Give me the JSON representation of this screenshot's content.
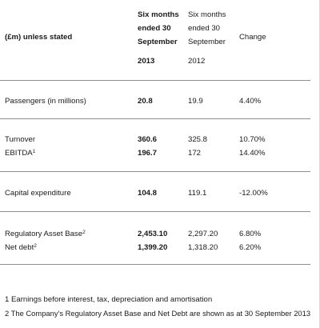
{
  "table": {
    "headers": {
      "label": "(£m) unless stated",
      "col2013": [
        "Six months",
        "ended 30",
        "September",
        "2013"
      ],
      "col2012": [
        "Six months",
        "ended 30",
        "September",
        "2012"
      ],
      "change": "Change"
    },
    "rows": [
      {
        "label": "Passengers (in millions)",
        "sup": "",
        "v2013": "20.8",
        "v2012": "19.9",
        "change": "4.40%"
      },
      {
        "label": "Turnover",
        "sup": "",
        "v2013": "360.6",
        "v2012": "325.8",
        "change": "10.70%"
      },
      {
        "label": "EBITDA",
        "sup": "1",
        "v2013": "196.7",
        "v2012": "172",
        "change": "14.40%"
      },
      {
        "label": "Capital expenditure",
        "sup": "",
        "v2013": "104.8",
        "v2012": "119.1",
        "change": "-12.00%"
      },
      {
        "label": "Regulatory Asset Base",
        "sup": "2",
        "v2013": "2,453.10",
        "v2012": "2,297.20",
        "change": "6.80%"
      },
      {
        "label": "Net debt",
        "sup": "2",
        "v2013": "1,399.20",
        "v2012": "1,318.20",
        "change": "6.20%"
      }
    ]
  },
  "footnotes": [
    "1 Earnings before interest, tax, depreciation and amortisation",
    "2 The Company's Regulatory Asset Base and Net Debt are shown as at 30 September 2013"
  ]
}
